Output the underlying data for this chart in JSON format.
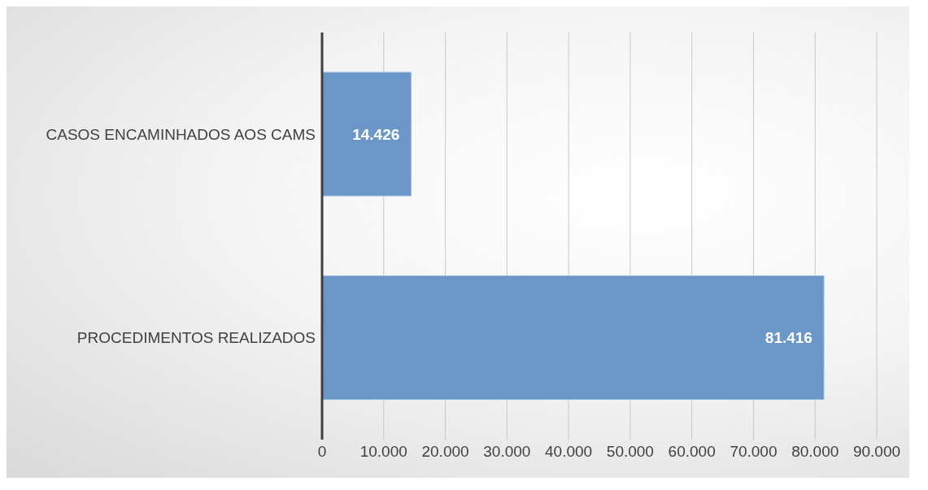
{
  "chart_data": {
    "type": "bar",
    "orientation": "horizontal",
    "categories": [
      "CASOS ENCAMINHADOS AOS CAMS",
      "PROCEDIMENTOS REALIZADOS"
    ],
    "values": [
      14426,
      81416
    ],
    "value_labels": [
      "14.426",
      "81.416"
    ],
    "color": "#6a96c8",
    "xlim": [
      0,
      90000
    ],
    "xticks": [
      0,
      {
        "value": 10000,
        "label": "10.000"
      },
      {
        "value": 20000,
        "label": "20.000"
      },
      {
        "value": 30000,
        "label": "30.000"
      },
      {
        "value": 40000,
        "label": "40.000"
      },
      {
        "value": 50000,
        "label": "50.000"
      },
      {
        "value": 60000,
        "label": "60.000"
      },
      {
        "value": 70000,
        "label": "70.000"
      },
      {
        "value": 80000,
        "label": "80.000"
      },
      {
        "value": 90000,
        "label": "90.000"
      }
    ],
    "grid": "x"
  }
}
